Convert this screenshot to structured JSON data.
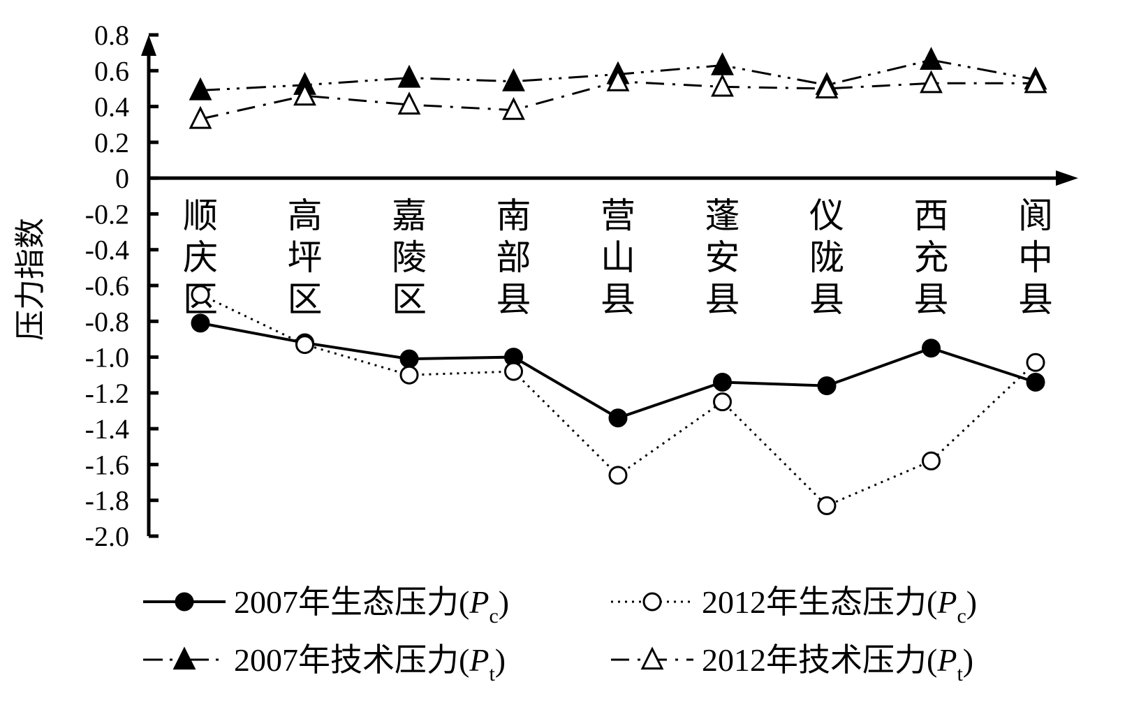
{
  "chart_data": {
    "type": "line",
    "ylabel": "压力指数",
    "ylim": [
      -2.0,
      0.8
    ],
    "ytick_labels": [
      "0.8",
      "0.6",
      "0.4",
      "0.2",
      "0",
      "-0.2",
      "-0.4",
      "-0.6",
      "-0.8",
      "-1.0",
      "-1.2",
      "-1.4",
      "-1.6",
      "-1.8",
      "-2.0"
    ],
    "yticks": [
      0.8,
      0.6,
      0.4,
      0.2,
      0,
      -0.2,
      -0.4,
      -0.6,
      -0.8,
      -1.0,
      -1.2,
      -1.4,
      -1.6,
      -1.8,
      -2.0
    ],
    "categories": [
      "顺庆区",
      "高坪区",
      "嘉陵区",
      "南部县",
      "营山县",
      "蓬安县",
      "仪陇县",
      "西充县",
      "阆中县"
    ],
    "legend_position": "bottom",
    "series": [
      {
        "name": "2007年生态压力(Pc)",
        "label_main": "2007年生态压力(",
        "label_italic": "P",
        "label_sub": "c",
        "label_close": ")",
        "line_style": "solid",
        "marker": "filled-circle",
        "values": [
          -0.81,
          -0.92,
          -1.01,
          -1.0,
          -1.34,
          -1.14,
          -1.16,
          -0.95,
          -1.14
        ]
      },
      {
        "name": "2012年生态压力(Pc)",
        "label_main": "2012年生态压力(",
        "label_italic": "P",
        "label_sub": "c",
        "label_close": ")",
        "line_style": "dotted",
        "marker": "open-circle",
        "values": [
          -0.65,
          -0.93,
          -1.1,
          -1.08,
          -1.66,
          -1.25,
          -1.83,
          -1.58,
          -1.03
        ]
      },
      {
        "name": "2007年技术压力(Pt)",
        "label_main": "2007年技术压力(",
        "label_italic": "P",
        "label_sub": "t",
        "label_close": ")",
        "line_style": "dash-dot-dot",
        "marker": "filled-triangle",
        "values": [
          0.49,
          0.52,
          0.56,
          0.54,
          0.58,
          0.63,
          0.52,
          0.66,
          0.55
        ]
      },
      {
        "name": "2012年技术压力(Pt)",
        "label_main": "2012年技术压力(",
        "label_italic": "P",
        "label_sub": "t",
        "label_close": ")",
        "line_style": "dash-dot",
        "marker": "open-triangle",
        "values": [
          0.33,
          0.46,
          0.41,
          0.38,
          0.54,
          0.51,
          0.5,
          0.53,
          0.53
        ]
      }
    ]
  }
}
